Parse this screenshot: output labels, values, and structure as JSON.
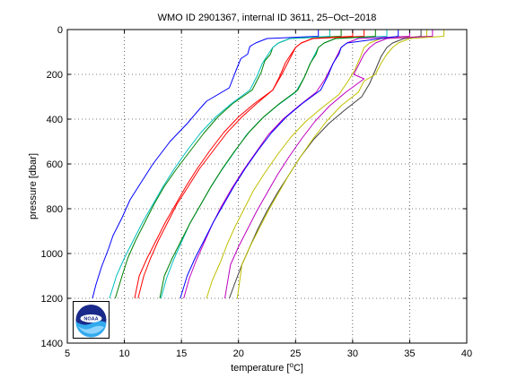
{
  "chart_data": {
    "type": "line",
    "title": "WMO ID 2901367, internal ID 3611, 25−Oct−2018",
    "xlabel": "temperature [",
    "xlabel_unit": "o",
    "xlabel_end": "C]",
    "ylabel": "pressure [dbar]",
    "xlim": [
      5,
      40
    ],
    "ylim": [
      0,
      1400
    ],
    "y_reversed": true,
    "grid": true,
    "xticks": [
      "5",
      "10",
      "15",
      "20",
      "25",
      "30",
      "35",
      "40"
    ],
    "yticks": [
      "0",
      "200",
      "400",
      "600",
      "800",
      "1000",
      "1200",
      "1400"
    ],
    "offset_per_profile_degC": 2,
    "logo_text": "NOAA",
    "series": [
      {
        "color": "#0000ff",
        "points": [
          [
            27.0,
            0
          ],
          [
            27.0,
            30
          ],
          [
            22.5,
            40
          ],
          [
            21.5,
            60
          ],
          [
            21.0,
            75
          ],
          [
            20.8,
            110
          ],
          [
            20.2,
            130
          ],
          [
            19.8,
            180
          ],
          [
            19.2,
            260
          ],
          [
            17.2,
            320
          ],
          [
            16.5,
            360
          ],
          [
            15.5,
            420
          ],
          [
            14.0,
            500
          ],
          [
            12.5,
            600
          ],
          [
            11.5,
            680
          ],
          [
            10.5,
            760
          ],
          [
            9.8,
            840
          ],
          [
            9.0,
            920
          ],
          [
            8.6,
            980
          ],
          [
            8.0,
            1060
          ],
          [
            7.5,
            1140
          ],
          [
            7.2,
            1200
          ]
        ]
      },
      {
        "color": "#008000",
        "points": [
          [
            29.0,
            0
          ],
          [
            29.0,
            30
          ],
          [
            24.5,
            40
          ],
          [
            23.5,
            60
          ],
          [
            23.0,
            80
          ],
          [
            22.8,
            110
          ],
          [
            22.3,
            140
          ],
          [
            22.0,
            190
          ],
          [
            21.2,
            270
          ],
          [
            19.5,
            330
          ],
          [
            18.2,
            390
          ],
          [
            17.0,
            460
          ],
          [
            15.8,
            540
          ],
          [
            14.6,
            620
          ],
          [
            13.5,
            700
          ],
          [
            12.6,
            780
          ],
          [
            11.8,
            860
          ],
          [
            11.0,
            940
          ],
          [
            10.3,
            1020
          ],
          [
            9.8,
            1100
          ],
          [
            9.2,
            1200
          ]
        ]
      },
      {
        "color": "#ff0000",
        "points": [
          [
            31.0,
            0
          ],
          [
            31.0,
            30
          ],
          [
            26.5,
            40
          ],
          [
            25.5,
            60
          ],
          [
            25.0,
            80
          ],
          [
            24.7,
            110
          ],
          [
            24.3,
            150
          ],
          [
            23.8,
            200
          ],
          [
            23.0,
            270
          ],
          [
            21.6,
            330
          ],
          [
            20.3,
            390
          ],
          [
            19.0,
            460
          ],
          [
            17.8,
            540
          ],
          [
            16.6,
            620
          ],
          [
            15.6,
            700
          ],
          [
            14.6,
            780
          ],
          [
            13.8,
            860
          ],
          [
            13.0,
            940
          ],
          [
            12.3,
            1020
          ],
          [
            11.7,
            1100
          ],
          [
            11.2,
            1200
          ]
        ]
      },
      {
        "color": "#00bfbf",
        "points": [
          [
            33.0,
            0
          ],
          [
            33.0,
            30
          ],
          [
            28.5,
            40
          ],
          [
            27.5,
            60
          ],
          [
            27.0,
            80
          ],
          [
            26.6,
            120
          ],
          [
            26.2,
            160
          ],
          [
            25.8,
            210
          ],
          [
            25.0,
            280
          ],
          [
            23.4,
            340
          ],
          [
            22.0,
            400
          ],
          [
            20.7,
            470
          ],
          [
            19.6,
            550
          ],
          [
            18.5,
            630
          ],
          [
            17.5,
            710
          ],
          [
            16.6,
            790
          ],
          [
            15.7,
            870
          ],
          [
            15.0,
            950
          ],
          [
            14.3,
            1030
          ],
          [
            13.7,
            1110
          ],
          [
            13.2,
            1200
          ]
        ]
      },
      {
        "color": "#bf00bf",
        "points": [
          [
            35.0,
            0
          ],
          [
            35.0,
            30
          ],
          [
            30.5,
            40
          ],
          [
            29.5,
            60
          ],
          [
            29.0,
            80
          ],
          [
            28.6,
            120
          ],
          [
            28.1,
            170
          ],
          [
            27.6,
            220
          ],
          [
            26.8,
            280
          ],
          [
            25.3,
            340
          ],
          [
            23.9,
            400
          ],
          [
            22.6,
            470
          ],
          [
            21.5,
            550
          ],
          [
            20.4,
            630
          ],
          [
            19.4,
            710
          ],
          [
            18.5,
            790
          ],
          [
            17.7,
            870
          ],
          [
            17.0,
            950
          ],
          [
            16.3,
            1030
          ],
          [
            15.7,
            1110
          ],
          [
            15.2,
            1200
          ]
        ]
      },
      {
        "color": "#bfbf00",
        "points": [
          [
            36.5,
            0
          ],
          [
            36.5,
            30
          ],
          [
            32.5,
            40
          ],
          [
            31.5,
            60
          ],
          [
            31.0,
            80
          ],
          [
            30.7,
            120
          ],
          [
            30.2,
            180
          ],
          [
            29.6,
            230
          ],
          [
            28.8,
            290
          ],
          [
            27.3,
            350
          ],
          [
            25.9,
            410
          ],
          [
            24.6,
            480
          ],
          [
            23.4,
            560
          ],
          [
            22.3,
            640
          ],
          [
            21.3,
            720
          ],
          [
            20.5,
            800
          ],
          [
            19.7,
            880
          ],
          [
            19.0,
            960
          ],
          [
            18.4,
            1040
          ],
          [
            17.7,
            1120
          ],
          [
            17.2,
            1200
          ]
        ]
      },
      {
        "color": "#404040",
        "points": [
          [
            36.0,
            0
          ],
          [
            36.0,
            30
          ],
          [
            34.5,
            40
          ],
          [
            33.5,
            60
          ],
          [
            33.0,
            80
          ],
          [
            32.5,
            120
          ],
          [
            32.0,
            180
          ],
          [
            31.5,
            240
          ],
          [
            30.8,
            300
          ],
          [
            29.3,
            360
          ],
          [
            27.9,
            420
          ],
          [
            26.6,
            490
          ],
          [
            25.4,
            570
          ],
          [
            24.4,
            650
          ],
          [
            23.4,
            730
          ],
          [
            22.5,
            810
          ],
          [
            21.7,
            890
          ],
          [
            21.0,
            970
          ],
          [
            20.3,
            1050
          ],
          [
            19.7,
            1130
          ],
          [
            19.2,
            1200
          ]
        ]
      },
      {
        "color": "#0000ff",
        "points": [
          [
            34.0,
            0
          ],
          [
            34.0,
            30
          ],
          [
            32.5,
            40
          ],
          [
            29.5,
            60
          ],
          [
            29.0,
            80
          ],
          [
            28.8,
            110
          ],
          [
            28.3,
            150
          ],
          [
            27.8,
            210
          ],
          [
            27.2,
            270
          ],
          [
            25.6,
            330
          ],
          [
            24.2,
            390
          ],
          [
            22.9,
            460
          ],
          [
            21.7,
            540
          ],
          [
            20.6,
            620
          ],
          [
            19.6,
            700
          ],
          [
            18.7,
            780
          ],
          [
            17.8,
            860
          ],
          [
            17.0,
            940
          ],
          [
            16.2,
            1020
          ],
          [
            15.5,
            1100
          ],
          [
            14.9,
            1200
          ]
        ]
      },
      {
        "color": "#008000",
        "points": [
          [
            32.0,
            0
          ],
          [
            32.0,
            30
          ],
          [
            28.5,
            40
          ],
          [
            27.5,
            60
          ],
          [
            27.0,
            80
          ],
          [
            26.8,
            110
          ],
          [
            26.3,
            150
          ],
          [
            25.8,
            210
          ],
          [
            25.2,
            270
          ],
          [
            23.6,
            330
          ],
          [
            22.2,
            390
          ],
          [
            20.9,
            460
          ],
          [
            19.7,
            540
          ],
          [
            18.6,
            620
          ],
          [
            17.6,
            700
          ],
          [
            16.7,
            780
          ],
          [
            15.8,
            860
          ],
          [
            15.0,
            940
          ],
          [
            14.2,
            1020
          ],
          [
            13.5,
            1100
          ],
          [
            13.1,
            1200
          ]
        ]
      },
      {
        "color": "#ff0000",
        "points": [
          [
            30.0,
            0
          ],
          [
            30.0,
            30
          ],
          [
            26.5,
            40
          ],
          [
            25.5,
            60
          ],
          [
            25.0,
            80
          ],
          [
            24.6,
            110
          ],
          [
            24.1,
            150
          ],
          [
            23.6,
            210
          ],
          [
            23.0,
            270
          ],
          [
            21.4,
            330
          ],
          [
            20.0,
            390
          ],
          [
            18.7,
            460
          ],
          [
            17.5,
            540
          ],
          [
            16.4,
            620
          ],
          [
            15.4,
            700
          ],
          [
            14.5,
            780
          ],
          [
            13.6,
            860
          ],
          [
            12.8,
            940
          ],
          [
            12.0,
            1020
          ],
          [
            11.3,
            1100
          ],
          [
            10.9,
            1200
          ]
        ]
      },
      {
        "color": "#00bfbf",
        "points": [
          [
            28.0,
            0
          ],
          [
            28.0,
            30
          ],
          [
            24.5,
            40
          ],
          [
            23.5,
            60
          ],
          [
            23.0,
            80
          ],
          [
            22.6,
            110
          ],
          [
            22.1,
            150
          ],
          [
            21.6,
            210
          ],
          [
            21.0,
            270
          ],
          [
            19.4,
            330
          ],
          [
            18.0,
            390
          ],
          [
            16.7,
            460
          ],
          [
            15.5,
            540
          ],
          [
            14.4,
            620
          ],
          [
            13.4,
            700
          ],
          [
            12.5,
            780
          ],
          [
            11.6,
            860
          ],
          [
            10.8,
            940
          ],
          [
            10.0,
            1020
          ],
          [
            9.3,
            1100
          ],
          [
            8.7,
            1200
          ]
        ]
      },
      {
        "color": "#bf00bf",
        "points": [
          [
            37.0,
            0
          ],
          [
            37.0,
            30
          ],
          [
            33.0,
            40
          ],
          [
            32.0,
            60
          ],
          [
            31.5,
            80
          ],
          [
            31.0,
            110
          ],
          [
            30.6,
            150
          ],
          [
            30.1,
            200
          ],
          [
            31.0,
            220
          ],
          [
            29.4,
            280
          ],
          [
            28.0,
            340
          ],
          [
            26.7,
            410
          ],
          [
            25.5,
            490
          ],
          [
            24.4,
            570
          ],
          [
            23.4,
            650
          ],
          [
            22.5,
            730
          ],
          [
            21.6,
            810
          ],
          [
            20.8,
            890
          ],
          [
            20.0,
            970
          ],
          [
            19.3,
            1050
          ],
          [
            18.8,
            1200
          ]
        ]
      },
      {
        "color": "#bfbf00",
        "points": [
          [
            38.0,
            0
          ],
          [
            38.0,
            30
          ],
          [
            35.0,
            40
          ],
          [
            34.0,
            60
          ],
          [
            33.5,
            80
          ],
          [
            33.0,
            110
          ],
          [
            32.5,
            150
          ],
          [
            32.0,
            200
          ],
          [
            31.0,
            230
          ],
          [
            30.5,
            280
          ],
          [
            29.0,
            340
          ],
          [
            27.7,
            410
          ],
          [
            26.5,
            490
          ],
          [
            25.4,
            570
          ],
          [
            24.4,
            650
          ],
          [
            23.5,
            730
          ],
          [
            22.6,
            810
          ],
          [
            21.8,
            890
          ],
          [
            21.0,
            970
          ],
          [
            20.3,
            1050
          ],
          [
            19.9,
            1200
          ]
        ]
      }
    ]
  }
}
